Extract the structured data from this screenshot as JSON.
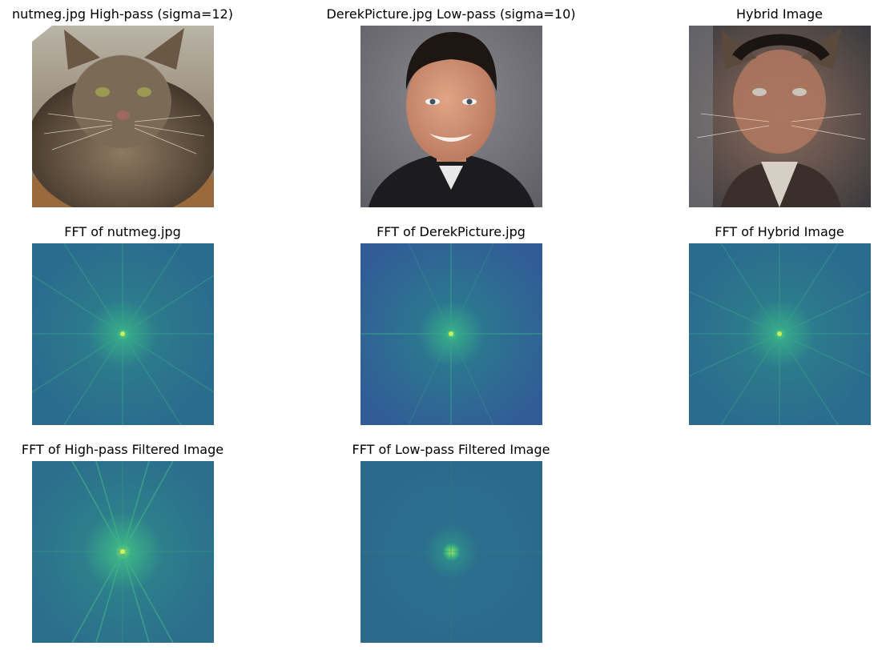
{
  "panels": {
    "p1": {
      "title": "nutmeg.jpg High-pass (sigma=12)"
    },
    "p2": {
      "title": "DerekPicture.jpg Low-pass (sigma=10)"
    },
    "p3": {
      "title": "Hybrid Image"
    },
    "p4": {
      "title": "FFT of nutmeg.jpg"
    },
    "p5": {
      "title": "FFT of DerekPicture.jpg"
    },
    "p6": {
      "title": "FFT of Hybrid Image"
    },
    "p7": {
      "title": "FFT of High-pass Filtered Image"
    },
    "p8": {
      "title": "FFT of Low-pass Filtered Image"
    }
  },
  "colors": {
    "fft_background": "#2c6a8c",
    "fft_background_dark": "#2f5e95",
    "fft_center": "#5ee07a",
    "fft_glow": "#3fb88a"
  }
}
